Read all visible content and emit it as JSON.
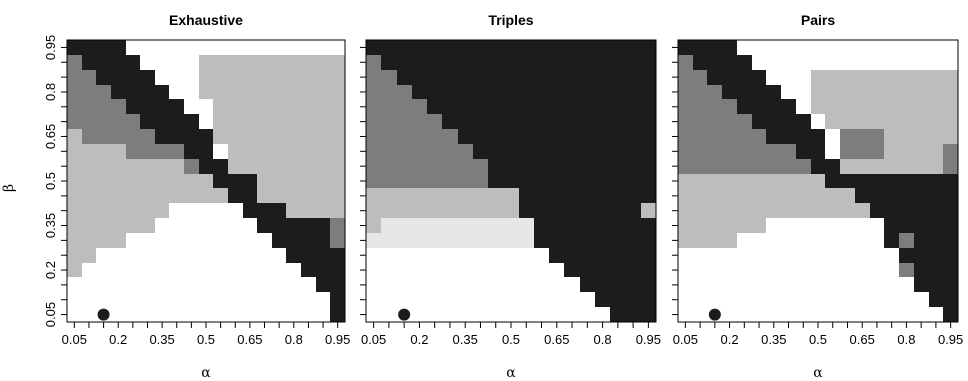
{
  "chart_data": {
    "type": "heatmap",
    "shared": {
      "xlabel": "α",
      "ylabel": "β",
      "xticks": [
        "0.05",
        "0.2",
        "0.35",
        "0.5",
        "0.65",
        "0.8",
        "0.95"
      ],
      "yticks": [
        "0.05",
        "0.2",
        "0.35",
        "0.5",
        "0.65",
        "0.8",
        "0.95"
      ],
      "grid_step": 0.05,
      "grid_range": [
        0.05,
        0.95
      ],
      "marker_point": {
        "alpha": 0.15,
        "beta": 0.05
      },
      "shade_colors": {
        "0": "#ffffff",
        "1": "#e6e6e6",
        "2": "#bdbdbd",
        "3": "#7d7d7d",
        "4": "#555555",
        "5": "#1c1c1c"
      },
      "note": "Each panel grid lists rows from beta=0.95 (top) to beta=0.05 (bottom); each row lists alpha=0.05..0.95. Digits are shade levels."
    },
    "panels": [
      {
        "title": "Exhaustive",
        "grid": [
          "5555000000000000000",
          "3555500002222222222",
          "3355550002222222222",
          "3335555002222222222",
          "3333555500222222222",
          "3333355550222222222",
          "2333335555222222222",
          "2222333355022222222",
          "2222222235522222222",
          "2222222222555222222",
          "2222222222255222222",
          "2222222000005552222",
          "2222220000000555553",
          "2222000000000055553",
          "2200000000000005555",
          "2000000000000000555",
          "0000000000000000055",
          "0000000000000000005",
          "0000000000000000005"
        ]
      },
      {
        "title": "Triples",
        "grid": [
          "5555555555555555555",
          "3555555555555555555",
          "3355555555555555555",
          "3335555555555555555",
          "3333555555555555555",
          "3333355555555555555",
          "3333335555555555555",
          "3333333555555555555",
          "3333333355555555555",
          "3333333355555555555",
          "2222222222555555555",
          "2222222222555555552",
          "2111111111155555555",
          "1111111111155555555",
          "0000000000005555555",
          "0000000000000555555",
          "0000000000000055555",
          "0000000000000005555",
          "0000000000000000555"
        ]
      },
      {
        "title": "Pairs",
        "grid": [
          "5555000000000000000",
          "3555500000000000000",
          "3355550002222222222",
          "3335555002222222222",
          "3333555502222222222",
          "3333355550222222222",
          "3333335555033322222",
          "3333333355033322223",
          "3333333335522222223",
          "2222222222555555555",
          "2222222222225555555",
          "2222222222222555555",
          "2222220000000055555",
          "2222000000000053555",
          "0000000000000005555",
          "0000000000000003555",
          "0000000000000000555",
          "0000000000000000055",
          "0000000000000000005"
        ]
      }
    ]
  }
}
